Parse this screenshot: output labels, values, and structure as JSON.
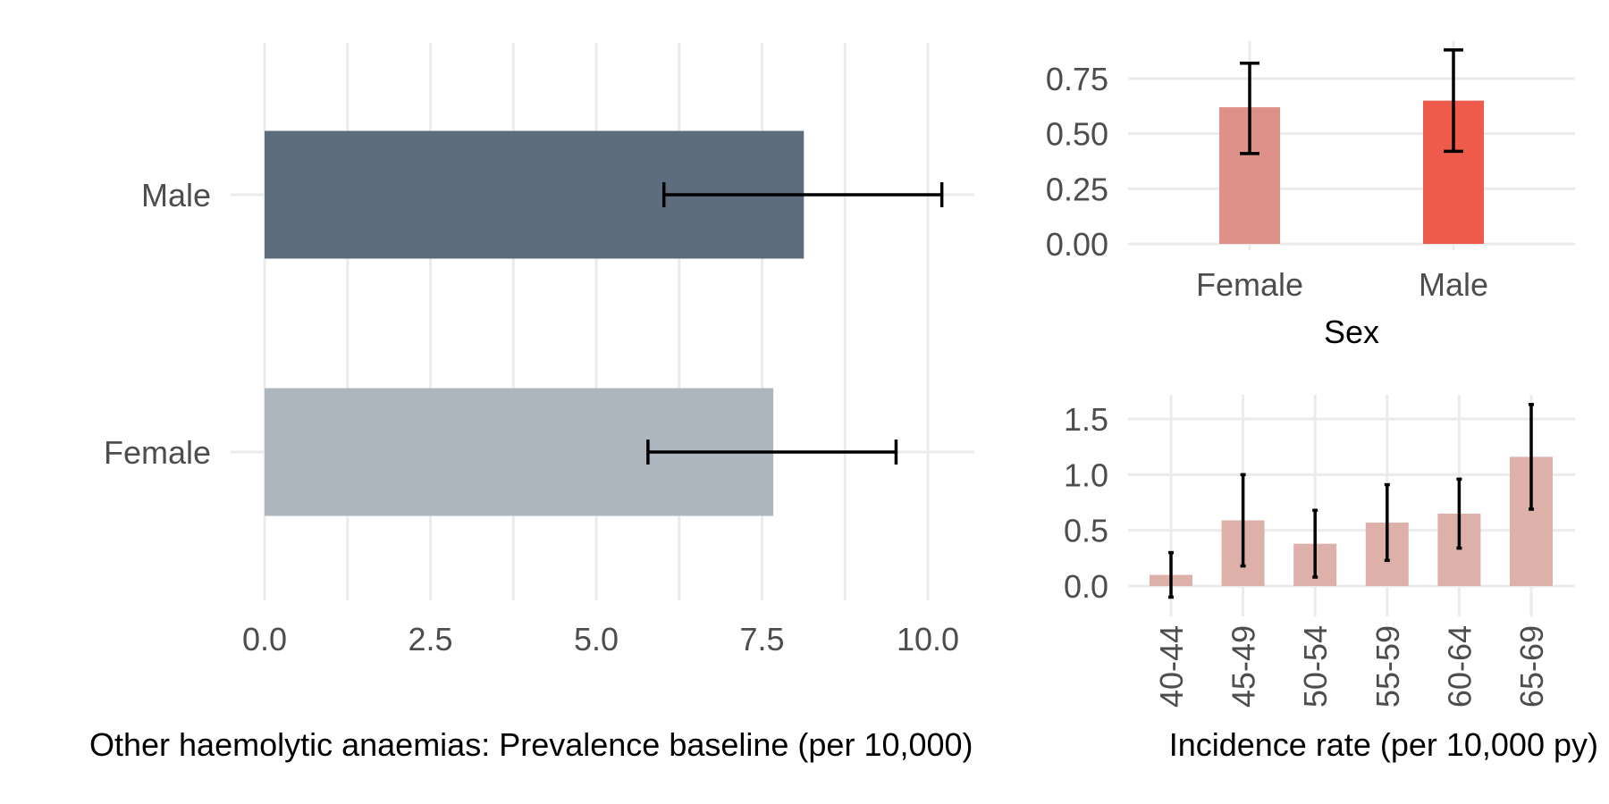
{
  "colors": {
    "male_bar_left": "#5d6d7e",
    "female_bar_left": "#adb5be",
    "female_bar_sex": "#dd9189",
    "male_bar_sex": "#ee5b4a",
    "age_bar": "#ddb0aa",
    "gridline": "#ebebeb"
  },
  "chart_data": [
    {
      "id": "prevalence",
      "type": "bar",
      "orientation": "horizontal",
      "categories": [
        "Male",
        "Female"
      ],
      "values": [
        8.13,
        7.67
      ],
      "error_low": [
        6.02,
        5.78
      ],
      "error_high": [
        10.21,
        9.52
      ],
      "xlabel": "Other haemolytic anaemias: Prevalence baseline (per 10,000)",
      "ylabel": "",
      "xlim": [
        0,
        10.7
      ],
      "xticks": [
        "0.0",
        "2.5",
        "5.0",
        "7.5",
        "10.0"
      ],
      "xtick_values": [
        0,
        2.5,
        5,
        7.5,
        10
      ],
      "grid": true
    },
    {
      "id": "incidence_sex",
      "type": "bar",
      "categories": [
        "Female",
        "Male"
      ],
      "values": [
        0.62,
        0.65
      ],
      "error_low": [
        0.41,
        0.42
      ],
      "error_high": [
        0.82,
        0.88
      ],
      "xlabel": "Sex",
      "ylabel": "",
      "ylim": [
        0,
        0.93
      ],
      "yticks": [
        "0.00",
        "0.25",
        "0.50",
        "0.75"
      ],
      "ytick_values": [
        0,
        0.25,
        0.5,
        0.75
      ],
      "grid": true
    },
    {
      "id": "incidence_age",
      "type": "bar",
      "categories": [
        "40-44",
        "45-49",
        "50-54",
        "55-59",
        "60-64",
        "65-69"
      ],
      "values": [
        0.1,
        0.59,
        0.38,
        0.57,
        0.65,
        1.16
      ],
      "error_low": [
        -0.1,
        0.18,
        0.08,
        0.23,
        0.34,
        0.69
      ],
      "error_high": [
        0.3,
        1.0,
        0.68,
        0.91,
        0.96,
        1.63
      ],
      "xlabel": "Incidence rate (per 10,000 py)",
      "ylabel": "",
      "ylim": [
        -0.1,
        1.7
      ],
      "yticks": [
        "0.0",
        "0.5",
        "1.0",
        "1.5"
      ],
      "ytick_values": [
        0,
        0.5,
        1,
        1.5
      ],
      "grid": true
    }
  ]
}
